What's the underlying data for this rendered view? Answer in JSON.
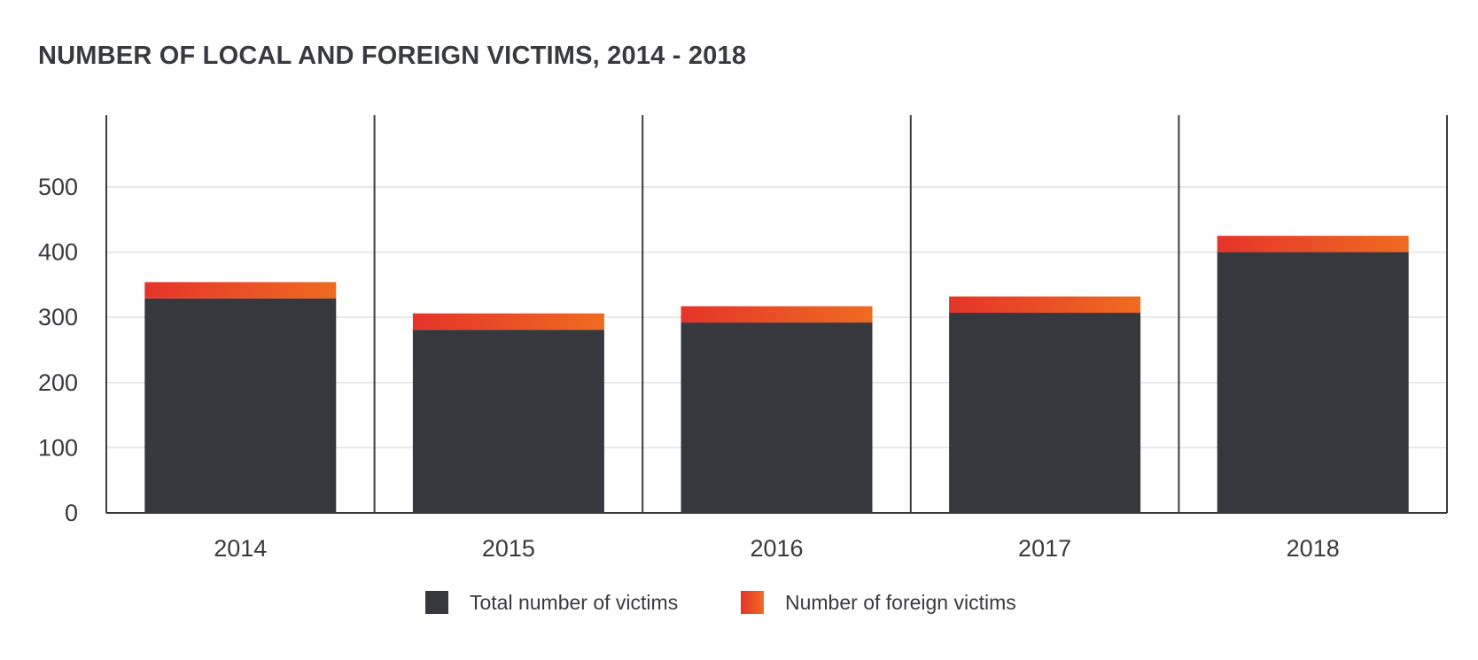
{
  "chart_data": {
    "type": "bar",
    "title": "NUMBER OF LOCAL AND FOREIGN VICTIMS, 2014 - 2018",
    "categories": [
      "2014",
      "2015",
      "2016",
      "2017",
      "2018"
    ],
    "series": [
      {
        "name": "Total number of victims",
        "values": [
          329,
          281,
          292,
          307,
          400
        ],
        "color": "#37383e"
      },
      {
        "name": "Number of foreign victims",
        "values": [
          25,
          25,
          25,
          25,
          25
        ],
        "color": "#ea5a24",
        "gradient": [
          "#e5342a",
          "#ef6b21"
        ]
      }
    ],
    "yticks": [
      0,
      100,
      200,
      300,
      400,
      500
    ],
    "ylim": [
      0,
      610
    ],
    "xlabel": "",
    "ylabel": "",
    "grid": true,
    "legend_position": "bottom-center"
  }
}
